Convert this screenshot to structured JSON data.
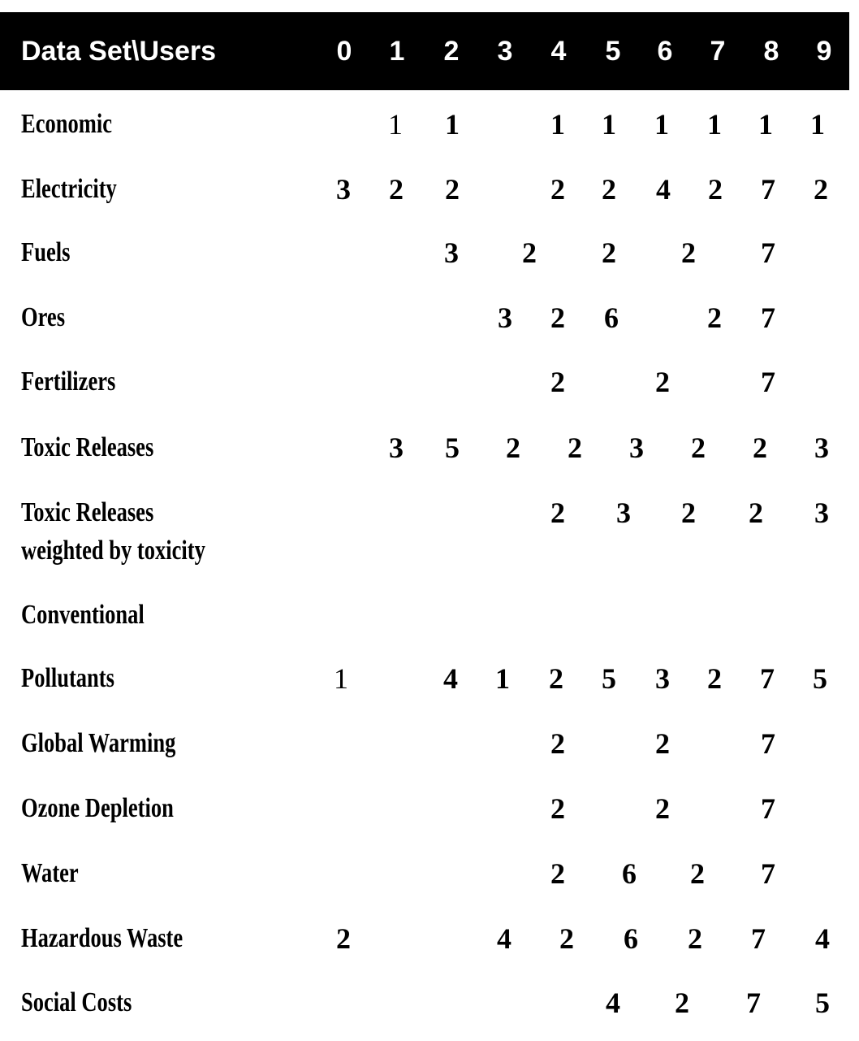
{
  "table": {
    "header": {
      "title": "Data Set\\Users",
      "columns": [
        "0",
        "1",
        "2",
        "3",
        "4",
        "5",
        "6",
        "7",
        "8",
        "9"
      ]
    },
    "rows": [
      {
        "label": "Economic",
        "values": [
          "1",
          "1",
          "1",
          "1",
          "1",
          "1",
          "1",
          "1"
        ]
      },
      {
        "label": "Electricity",
        "values": [
          "3",
          "2",
          "2",
          "2",
          "2",
          "4",
          "2",
          "7",
          "2"
        ]
      },
      {
        "label": "Fuels",
        "values": [
          "3",
          "2",
          "2",
          "2",
          "7"
        ]
      },
      {
        "label": "Ores",
        "values": [
          "3",
          "2",
          "6",
          "2",
          "7"
        ]
      },
      {
        "label": "Fertilizers",
        "values": [
          "2",
          "2",
          "7"
        ]
      },
      {
        "label": "Toxic Releases",
        "values": [
          "3",
          "5",
          "2",
          "2",
          "3",
          "2",
          "2",
          "3"
        ]
      },
      {
        "label": "Toxic Releases",
        "label2": "weighted by toxicity",
        "values": [
          "2",
          "3",
          "2",
          "2",
          "3"
        ]
      },
      {
        "label": "Conventional",
        "values": []
      },
      {
        "label": "Pollutants",
        "values": [
          "1",
          "4",
          "1",
          "2",
          "5",
          "3",
          "2",
          "7",
          "5"
        ]
      },
      {
        "label": "Global Warming",
        "values": [
          "2",
          "2",
          "7"
        ]
      },
      {
        "label": "Ozone Depletion",
        "values": [
          "2",
          "2",
          "7"
        ]
      },
      {
        "label": "Water",
        "values": [
          "2",
          "6",
          "2",
          "7"
        ]
      },
      {
        "label": "Hazardous Waste",
        "values": [
          "2",
          "4",
          "2",
          "6",
          "2",
          "7",
          "4"
        ]
      },
      {
        "label": "Social Costs",
        "values": [
          "4",
          "2",
          "7",
          "5"
        ]
      }
    ]
  }
}
